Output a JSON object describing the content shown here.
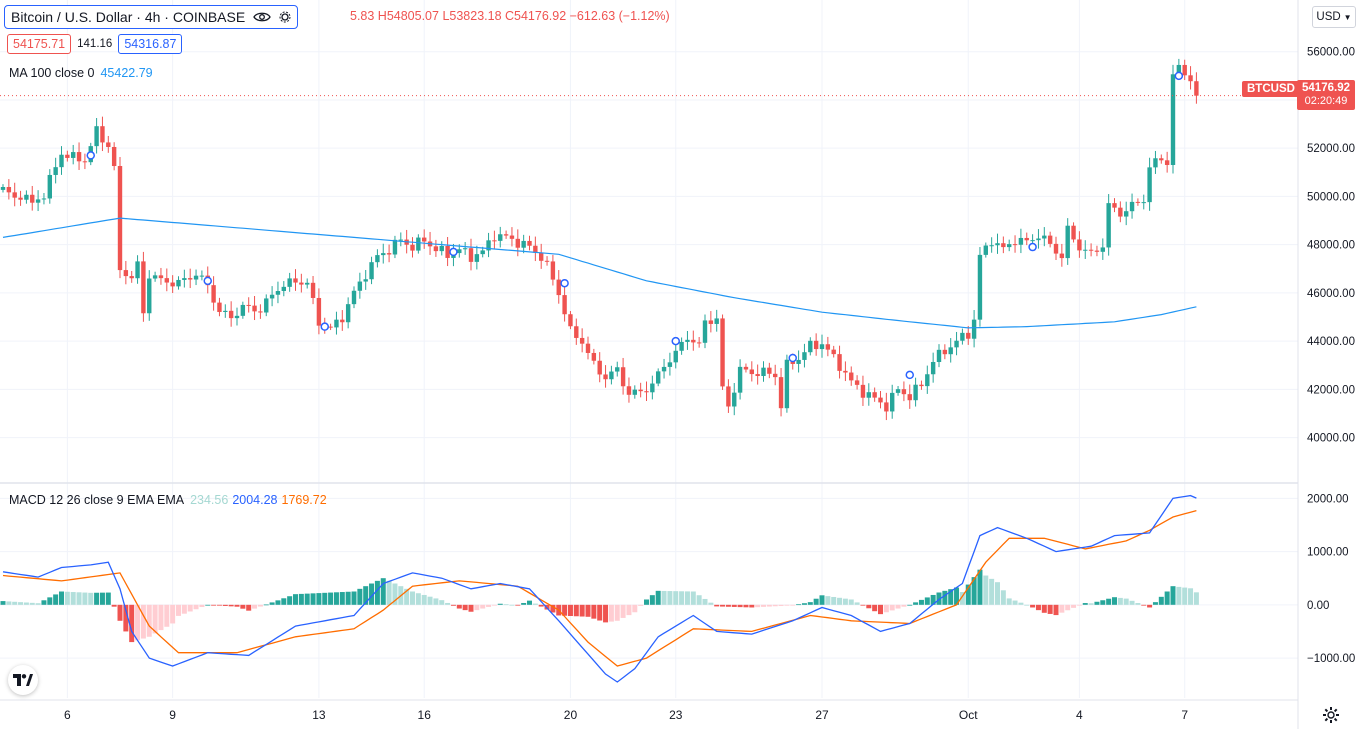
{
  "legend": {
    "symbol": "Bitcoin / U.S. Dollar · 4h · COINBASE",
    "ohlc": "5.83  H54805.07  L53823.18  C54176.92  −612.63 (−1.12%)",
    "sell_price": "54175.71",
    "spread": "141.16",
    "buy_price": "54316.87"
  },
  "ma_legend": {
    "label": "MA 100 close 0",
    "value": "45422.79"
  },
  "macd_legend": {
    "label": "MACD 12 26 close 9 EMA EMA",
    "hist": "234.56",
    "macd": "2004.28",
    "signal": "1769.72"
  },
  "currency": "USD",
  "last_tag": {
    "symbol": "BTCUSD",
    "price": "54176.92",
    "countdown": "02:20:49"
  },
  "icons": [
    "eye-icon",
    "chevron-down-icon",
    "tradingview-logo-icon",
    "settings-icon"
  ],
  "colors": {
    "up": "#26a69a",
    "down": "#ef5350",
    "ma": "#2196f3",
    "macd": "#2962ff",
    "signal": "#ff6d00",
    "hist_up_strong": "#26a69a",
    "hist_up_weak": "#b2dfdb",
    "hist_down_strong": "#ef5350",
    "hist_down_weak": "#ffcdd2"
  },
  "chart_data": [
    {
      "type": "candlestick",
      "title": "Bitcoin / U.S. Dollar · 4h · COINBASE",
      "x_tick_labels": [
        "6",
        "9",
        "13",
        "16",
        "20",
        "23",
        "27",
        "Oct",
        "4",
        "7"
      ],
      "y_ticks": [
        40000,
        42000,
        44000,
        46000,
        48000,
        50000,
        52000,
        54000,
        56000
      ],
      "y_tick_labels": [
        "40000.00",
        "42000.00",
        "44000.00",
        "46000.00",
        "48000.00",
        "50000.00",
        "52000.00",
        "54000.00",
        "56000.00"
      ],
      "ylim": [
        38200,
        56900
      ],
      "grid": true,
      "close_path": [
        [
          0,
          50300
        ],
        [
          2,
          49900
        ],
        [
          3,
          50100
        ],
        [
          5,
          49700
        ],
        [
          7,
          50100
        ],
        [
          10,
          51800
        ],
        [
          12,
          51600
        ],
        [
          14,
          51500
        ],
        [
          16,
          52700
        ],
        [
          18,
          52100
        ],
        [
          19,
          51200
        ],
        [
          20,
          46800
        ],
        [
          21,
          46900
        ],
        [
          22,
          46600
        ],
        [
          23,
          47200
        ],
        [
          24,
          45100
        ],
        [
          25,
          46800
        ],
        [
          27,
          46500
        ],
        [
          30,
          46400
        ],
        [
          33,
          46800
        ],
        [
          35,
          46300
        ],
        [
          37,
          45200
        ],
        [
          39,
          45000
        ],
        [
          41,
          45400
        ],
        [
          44,
          45300
        ],
        [
          47,
          46200
        ],
        [
          50,
          46500
        ],
        [
          52,
          46400
        ],
        [
          54,
          44800
        ],
        [
          56,
          44500
        ],
        [
          58,
          45000
        ],
        [
          60,
          46000
        ],
        [
          62,
          46800
        ],
        [
          64,
          47500
        ],
        [
          66,
          47800
        ],
        [
          68,
          48200
        ],
        [
          70,
          47900
        ],
        [
          72,
          48200
        ],
        [
          74,
          47800
        ],
        [
          76,
          47600
        ],
        [
          78,
          47800
        ],
        [
          80,
          47500
        ],
        [
          82,
          47700
        ],
        [
          84,
          48400
        ],
        [
          86,
          48300
        ],
        [
          88,
          48100
        ],
        [
          90,
          47900
        ],
        [
          92,
          47500
        ],
        [
          93,
          47100
        ],
        [
          95,
          46000
        ],
        [
          97,
          44400
        ],
        [
          99,
          44000
        ],
        [
          101,
          43000
        ],
        [
          103,
          42500
        ],
        [
          105,
          42800
        ],
        [
          107,
          41800
        ],
        [
          109,
          41900
        ],
        [
          111,
          42200
        ],
        [
          113,
          43000
        ],
        [
          115,
          43500
        ],
        [
          117,
          44200
        ],
        [
          119,
          43800
        ],
        [
          120,
          44800
        ],
        [
          121,
          44900
        ],
        [
          122,
          44900
        ],
        [
          123,
          42000
        ],
        [
          124,
          41300
        ],
        [
          126,
          42800
        ],
        [
          128,
          42700
        ],
        [
          130,
          42700
        ],
        [
          132,
          42600
        ],
        [
          133,
          41300
        ],
        [
          134,
          43000
        ],
        [
          136,
          43300
        ],
        [
          138,
          43800
        ],
        [
          140,
          43900
        ],
        [
          141,
          43600
        ],
        [
          143,
          43000
        ],
        [
          145,
          42300
        ],
        [
          147,
          41900
        ],
        [
          149,
          41600
        ],
        [
          151,
          41300
        ],
        [
          153,
          42000
        ],
        [
          155,
          41700
        ],
        [
          157,
          42200
        ],
        [
          159,
          43200
        ],
        [
          161,
          43600
        ],
        [
          163,
          44000
        ],
        [
          165,
          44300
        ],
        [
          166,
          44900
        ],
        [
          167,
          47500
        ],
        [
          169,
          48200
        ],
        [
          171,
          47800
        ],
        [
          173,
          48200
        ],
        [
          175,
          48100
        ],
        [
          177,
          48400
        ],
        [
          179,
          48000
        ],
        [
          181,
          47500
        ],
        [
          182,
          48600
        ],
        [
          184,
          47900
        ],
        [
          186,
          47600
        ],
        [
          188,
          48000
        ],
        [
          189,
          49600
        ],
        [
          191,
          49300
        ],
        [
          193,
          49600
        ],
        [
          195,
          49900
        ],
        [
          196,
          51200
        ],
        [
          198,
          51600
        ],
        [
          199,
          51400
        ],
        [
          200,
          55000
        ],
        [
          201,
          55300
        ],
        [
          202,
          55200
        ],
        [
          203,
          54800
        ],
        [
          204,
          54176.92
        ]
      ],
      "ma100": [
        [
          0,
          48300
        ],
        [
          20,
          49100
        ],
        [
          40,
          48700
        ],
        [
          60,
          48300
        ],
        [
          80,
          47900
        ],
        [
          95,
          47600
        ],
        [
          110,
          46500
        ],
        [
          125,
          45800
        ],
        [
          140,
          45200
        ],
        [
          155,
          44800
        ],
        [
          165,
          44550
        ],
        [
          175,
          44600
        ],
        [
          190,
          44800
        ],
        [
          198,
          45100
        ],
        [
          204,
          45422.79
        ]
      ],
      "markers": [
        [
          15,
          51700
        ],
        [
          35,
          46500
        ],
        [
          55,
          44600
        ],
        [
          77,
          47700
        ],
        [
          96,
          46400
        ],
        [
          115,
          44000
        ],
        [
          135,
          43300
        ],
        [
          155,
          42600
        ],
        [
          176,
          47900
        ],
        [
          201,
          55000
        ]
      ],
      "last_price": 54176.92
    },
    {
      "type": "line",
      "title": "MACD 12 26 close 9 EMA EMA",
      "y_ticks": [
        -1000,
        0,
        1000,
        2000
      ],
      "y_tick_labels": [
        "−1000.00",
        "0.00",
        "1000.00",
        "2000.00"
      ],
      "ylim": [
        -1750,
        2250
      ],
      "grid": true,
      "series": [
        {
          "name": "MACD",
          "points": [
            [
              0,
              620
            ],
            [
              6,
              520
            ],
            [
              10,
              700
            ],
            [
              15,
              750
            ],
            [
              18,
              800
            ],
            [
              20,
              300
            ],
            [
              22,
              -500
            ],
            [
              25,
              -1000
            ],
            [
              29,
              -1150
            ],
            [
              35,
              -900
            ],
            [
              42,
              -950
            ],
            [
              50,
              -400
            ],
            [
              55,
              -300
            ],
            [
              60,
              -200
            ],
            [
              65,
              400
            ],
            [
              70,
              600
            ],
            [
              75,
              500
            ],
            [
              80,
              300
            ],
            [
              85,
              400
            ],
            [
              90,
              300
            ],
            [
              95,
              -300
            ],
            [
              99,
              -800
            ],
            [
              103,
              -1300
            ],
            [
              105,
              -1450
            ],
            [
              108,
              -1200
            ],
            [
              112,
              -600
            ],
            [
              118,
              -200
            ],
            [
              122,
              -500
            ],
            [
              128,
              -550
            ],
            [
              135,
              -300
            ],
            [
              140,
              -50
            ],
            [
              145,
              -200
            ],
            [
              150,
              -500
            ],
            [
              155,
              -350
            ],
            [
              160,
              100
            ],
            [
              164,
              400
            ],
            [
              167,
              1300
            ],
            [
              170,
              1450
            ],
            [
              175,
              1250
            ],
            [
              180,
              1000
            ],
            [
              186,
              1100
            ],
            [
              190,
              1300
            ],
            [
              196,
              1350
            ],
            [
              200,
              2000
            ],
            [
              203,
              2050
            ],
            [
              204,
              2004.28
            ]
          ]
        },
        {
          "name": "Signal",
          "points": [
            [
              0,
              550
            ],
            [
              10,
              450
            ],
            [
              20,
              600
            ],
            [
              25,
              -400
            ],
            [
              30,
              -900
            ],
            [
              40,
              -900
            ],
            [
              50,
              -600
            ],
            [
              60,
              -450
            ],
            [
              65,
              -100
            ],
            [
              70,
              350
            ],
            [
              78,
              450
            ],
            [
              88,
              350
            ],
            [
              95,
              -100
            ],
            [
              100,
              -700
            ],
            [
              105,
              -1150
            ],
            [
              110,
              -1000
            ],
            [
              118,
              -450
            ],
            [
              128,
              -500
            ],
            [
              138,
              -200
            ],
            [
              145,
              -300
            ],
            [
              155,
              -350
            ],
            [
              163,
              0
            ],
            [
              168,
              800
            ],
            [
              172,
              1250
            ],
            [
              178,
              1250
            ],
            [
              185,
              1050
            ],
            [
              192,
              1200
            ],
            [
              196,
              1400
            ],
            [
              200,
              1650
            ],
            [
              204,
              1769.72
            ]
          ]
        }
      ],
      "histogram_last": 234.56
    }
  ]
}
